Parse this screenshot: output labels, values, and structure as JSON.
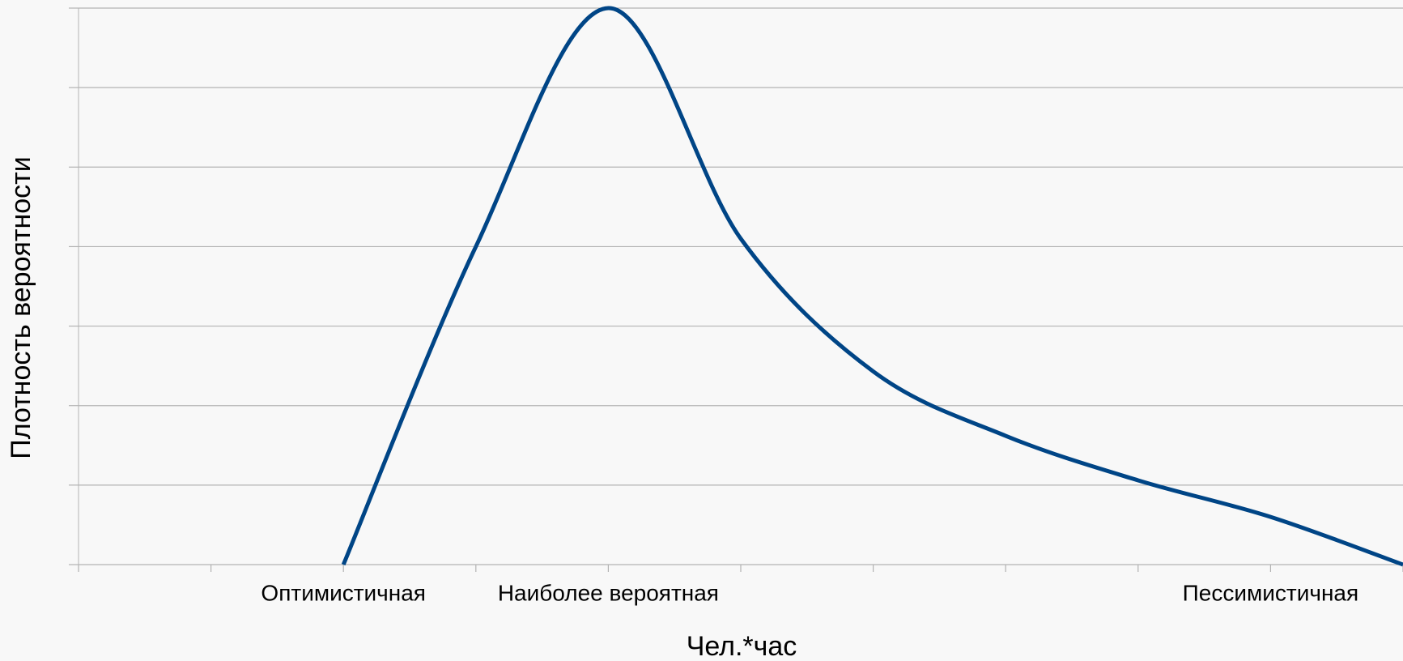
{
  "chart_data": {
    "type": "line",
    "x_label": "Чел.*час",
    "y_label": "Плотность вероятности",
    "categories": [
      null,
      null,
      "Оптимистичная",
      null,
      "Наиболее вероятная",
      null,
      null,
      null,
      null,
      "Пессимистичная",
      null
    ],
    "series": [
      {
        "name": "Плотность",
        "color": "#004586",
        "values": [
          null,
          null,
          0,
          4.0,
          7.0,
          4.1,
          2.43,
          1.62,
          1.06,
          0.6,
          0
        ]
      }
    ],
    "ylim": [
      0,
      7
    ],
    "yticks": [
      0,
      1,
      2,
      3,
      4,
      5,
      6,
      7
    ],
    "grid": true
  }
}
